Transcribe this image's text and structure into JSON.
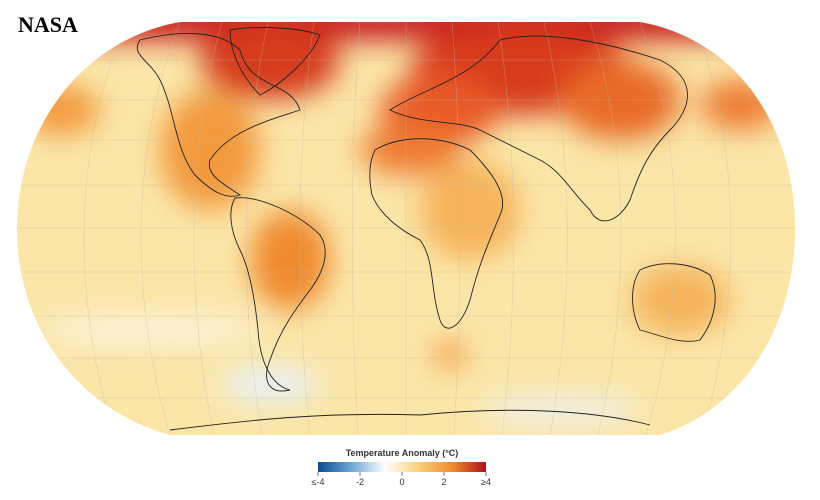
{
  "header": {
    "title": "NASA"
  },
  "legend": {
    "title": "Temperature Anomaly (°C)",
    "range": [
      -4,
      4
    ],
    "ticks": [
      {
        "value": -4,
        "label": "≤-4"
      },
      -2,
      0,
      {
        "value": 2,
        "label": "2"
      },
      {
        "value": 4,
        "label": "≥4"
      }
    ],
    "colors": [
      "#0a4a92",
      "#6fa8d6",
      "#ffffff",
      "#f9d07a",
      "#f08a2e",
      "#b0101a"
    ]
  }
}
